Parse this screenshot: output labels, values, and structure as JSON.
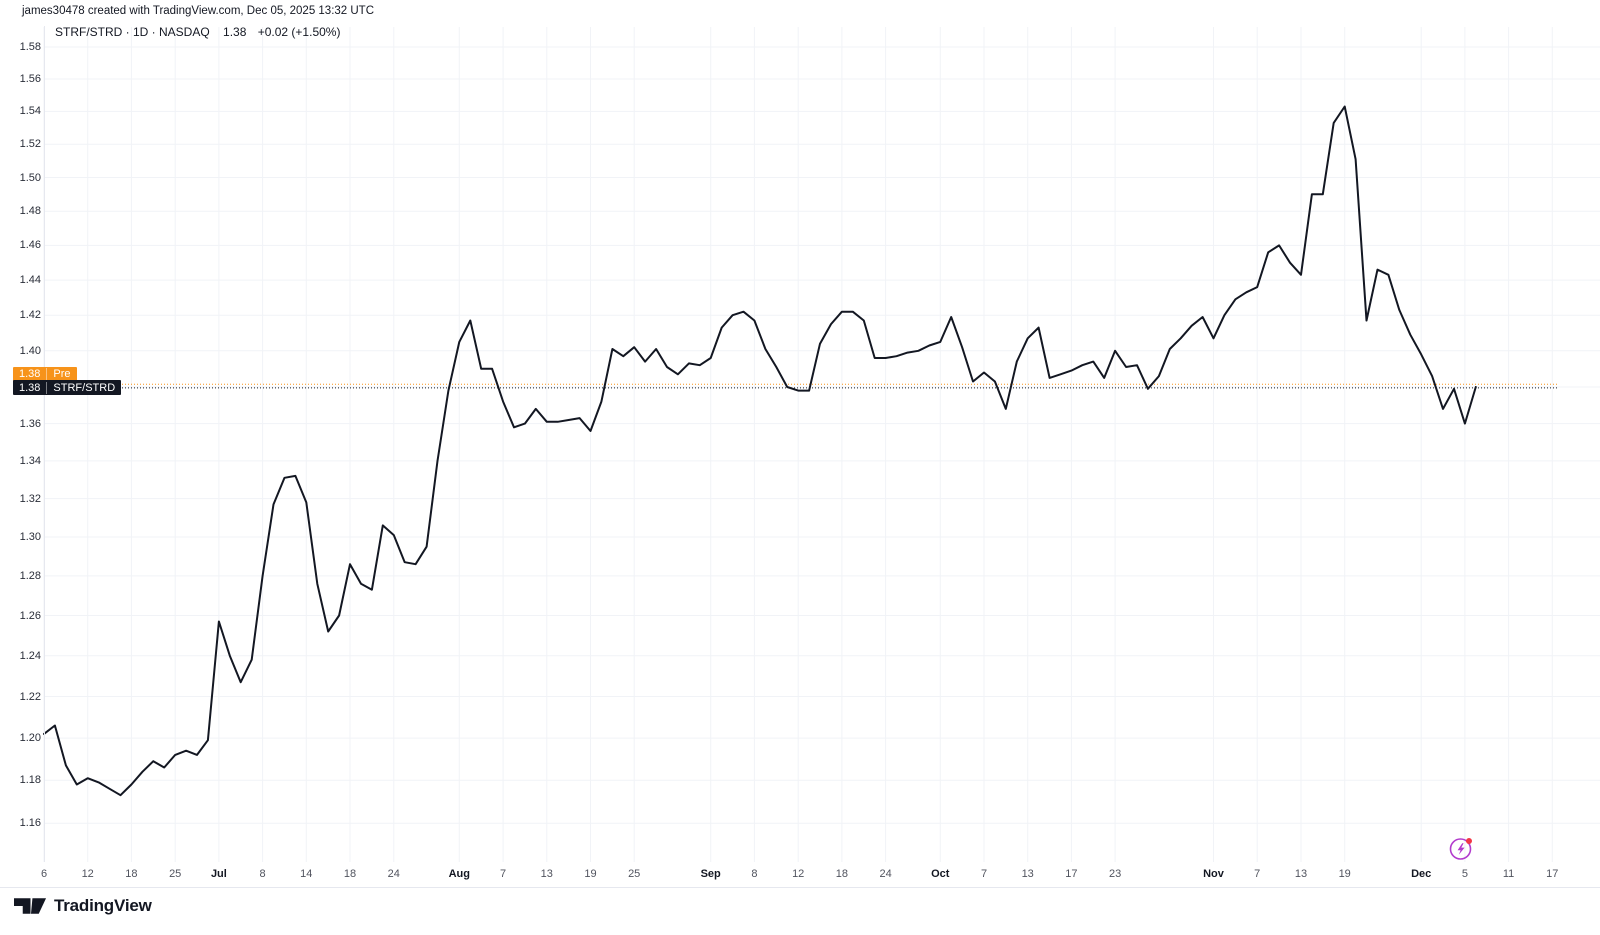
{
  "attribution": "james30478 created with TradingView.com, Dec 05, 2025 13:32 UTC",
  "header": {
    "symbol_line": "STRF/STRD · 1D · NASDAQ",
    "price": "1.38",
    "change": "+0.02 (+1.50%)"
  },
  "price_labels": {
    "pre": {
      "price": "1.38",
      "label": "Pre"
    },
    "main": {
      "price": "1.38",
      "label": "STRF/STRD"
    }
  },
  "footer": {
    "logo_text": "TradingView"
  },
  "colors": {
    "line": "#131722",
    "grid": "#f1f3f7",
    "pre_orange": "#f7931a",
    "price_black": "#131722",
    "flash_purple": "#b23bcd",
    "alert_red": "#f23645"
  },
  "chart_data": {
    "type": "line",
    "title": "STRF/STRD daily close ratio",
    "symbol": "STRF/STRD",
    "interval": "1D",
    "exchange": "NASDAQ",
    "last_price": 1.38,
    "change": "+0.02 (+1.50%)",
    "y_axis": {
      "min": 1.16,
      "max": 1.58,
      "step": 0.02,
      "scale": "log",
      "grid": true
    },
    "x_ticks": [
      {
        "label": "6",
        "i": 0
      },
      {
        "label": "12",
        "i": 4
      },
      {
        "label": "18",
        "i": 8
      },
      {
        "label": "25",
        "i": 12
      },
      {
        "label": "Jul",
        "i": 16,
        "bold": true
      },
      {
        "label": "8",
        "i": 20
      },
      {
        "label": "14",
        "i": 24
      },
      {
        "label": "18",
        "i": 28
      },
      {
        "label": "24",
        "i": 32
      },
      {
        "label": "Aug",
        "i": 38,
        "bold": true
      },
      {
        "label": "7",
        "i": 42
      },
      {
        "label": "13",
        "i": 46
      },
      {
        "label": "19",
        "i": 50
      },
      {
        "label": "25",
        "i": 54
      },
      {
        "label": "Sep",
        "i": 61,
        "bold": true
      },
      {
        "label": "8",
        "i": 65
      },
      {
        "label": "12",
        "i": 69
      },
      {
        "label": "18",
        "i": 73
      },
      {
        "label": "24",
        "i": 77
      },
      {
        "label": "Oct",
        "i": 82,
        "bold": true
      },
      {
        "label": "7",
        "i": 86
      },
      {
        "label": "13",
        "i": 90
      },
      {
        "label": "17",
        "i": 94
      },
      {
        "label": "23",
        "i": 98
      },
      {
        "label": "Nov",
        "i": 107,
        "bold": true
      },
      {
        "label": "7",
        "i": 111
      },
      {
        "label": "13",
        "i": 115
      },
      {
        "label": "19",
        "i": 119
      },
      {
        "label": "Dec",
        "i": 126,
        "bold": true
      },
      {
        "label": "5",
        "i": 130
      },
      {
        "label": "11",
        "i": 134
      },
      {
        "label": "17",
        "i": 138
      }
    ],
    "pre_market_line": {
      "value": 1.3815
    },
    "current_price_line": {
      "value": 1.3795
    },
    "series": [
      {
        "name": "STRF/STRD",
        "values": [
          1.202,
          1.206,
          1.187,
          1.178,
          1.181,
          1.179,
          1.176,
          1.173,
          1.178,
          1.184,
          1.189,
          1.186,
          1.192,
          1.194,
          1.192,
          1.199,
          1.257,
          1.24,
          1.227,
          1.238,
          1.28,
          1.317,
          1.331,
          1.332,
          1.318,
          1.276,
          1.252,
          1.26,
          1.286,
          1.276,
          1.273,
          1.306,
          1.301,
          1.287,
          1.286,
          1.295,
          1.34,
          1.378,
          1.405,
          1.417,
          1.39,
          1.39,
          1.372,
          1.358,
          1.36,
          1.368,
          1.361,
          1.361,
          1.362,
          1.363,
          1.356,
          1.372,
          1.401,
          1.397,
          1.402,
          1.394,
          1.401,
          1.391,
          1.387,
          1.393,
          1.392,
          1.396,
          1.413,
          1.42,
          1.422,
          1.417,
          1.401,
          1.391,
          1.38,
          1.378,
          1.378,
          1.404,
          1.415,
          1.422,
          1.422,
          1.417,
          1.396,
          1.396,
          1.397,
          1.399,
          1.4,
          1.403,
          1.405,
          1.419,
          1.402,
          1.383,
          1.388,
          1.383,
          1.368,
          1.394,
          1.407,
          1.413,
          1.385,
          1.387,
          1.389,
          1.392,
          1.394,
          1.385,
          1.4,
          1.391,
          1.392,
          1.379,
          1.386,
          1.401,
          1.407,
          1.414,
          1.419,
          1.407,
          1.42,
          1.429,
          1.433,
          1.436,
          1.456,
          1.46,
          1.45,
          1.443,
          1.49,
          1.49,
          1.533,
          1.543,
          1.511,
          1.417,
          1.446,
          1.443,
          1.423,
          1.409,
          1.398,
          1.386,
          1.368,
          1.379,
          1.36,
          1.38
        ]
      }
    ],
    "legend_position": "top-left"
  }
}
